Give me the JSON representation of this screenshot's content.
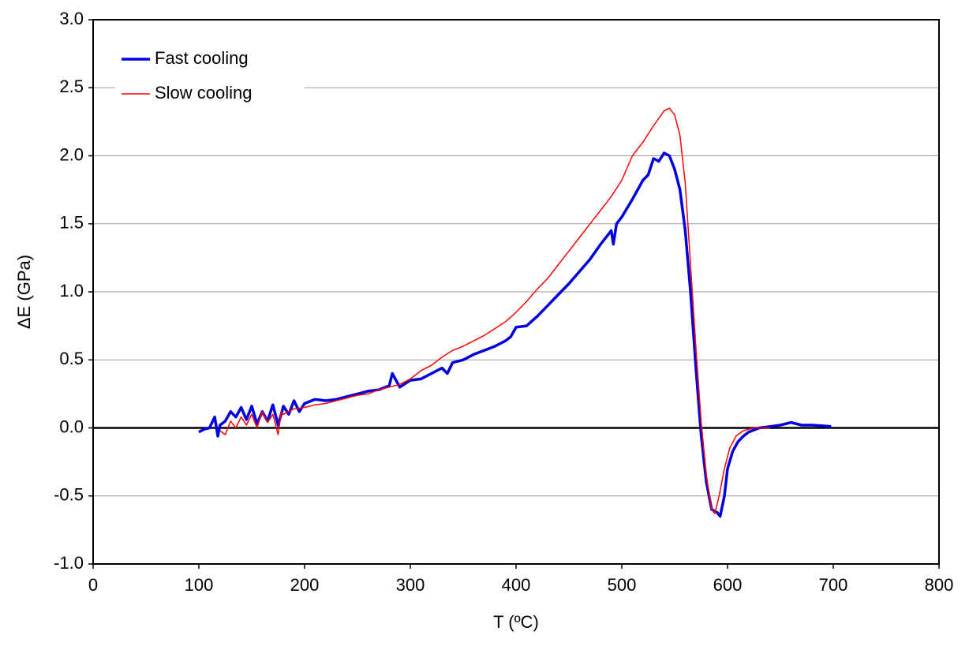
{
  "chart_data": {
    "type": "line",
    "x_label": "T (ºC)",
    "y_label": "ΔE (GPa)",
    "xlim": [
      0,
      800
    ],
    "xticks": [
      0,
      100,
      200,
      300,
      400,
      500,
      600,
      700,
      800
    ],
    "ylim": [
      -1.0,
      3.0
    ],
    "yticks": [
      {
        "value": -1.0,
        "label": "-1.0"
      },
      -0.5,
      {
        "value": 0.0,
        "label": "0.0"
      },
      0.5,
      {
        "value": 1.0,
        "label": "1.0"
      },
      1.5,
      {
        "value": 2.0,
        "label": "2.0"
      },
      2.5,
      {
        "value": 3.0,
        "label": "3.0"
      }
    ],
    "grid": true,
    "zero_line": true,
    "legend": "upper left",
    "series": [
      {
        "name": "Fast cooling",
        "color": "#0000dd",
        "x": [
          100,
          105,
          110,
          115,
          118,
          120,
          125,
          130,
          135,
          140,
          145,
          150,
          155,
          160,
          165,
          170,
          175,
          180,
          185,
          190,
          195,
          200,
          210,
          220,
          230,
          240,
          250,
          260,
          270,
          280,
          283,
          290,
          300,
          310,
          320,
          330,
          335,
          340,
          350,
          360,
          370,
          380,
          390,
          395,
          400,
          410,
          420,
          430,
          440,
          450,
          460,
          470,
          480,
          490,
          492,
          495,
          500,
          510,
          520,
          525,
          530,
          535,
          540,
          545,
          550,
          555,
          560,
          565,
          570,
          575,
          580,
          585,
          590,
          593,
          597,
          600,
          605,
          610,
          615,
          620,
          630,
          640,
          650,
          655,
          660,
          670,
          680,
          690,
          698
        ],
        "values": [
          -0.03,
          -0.01,
          0.0,
          0.08,
          -0.06,
          0.02,
          0.05,
          0.12,
          0.08,
          0.15,
          0.06,
          0.16,
          0.03,
          0.12,
          0.05,
          0.17,
          0.02,
          0.16,
          0.1,
          0.2,
          0.12,
          0.18,
          0.21,
          0.2,
          0.21,
          0.23,
          0.25,
          0.27,
          0.28,
          0.31,
          0.4,
          0.3,
          0.35,
          0.36,
          0.4,
          0.44,
          0.4,
          0.48,
          0.5,
          0.54,
          0.57,
          0.6,
          0.64,
          0.67,
          0.74,
          0.75,
          0.82,
          0.9,
          0.98,
          1.06,
          1.15,
          1.24,
          1.35,
          1.45,
          1.35,
          1.5,
          1.55,
          1.68,
          1.82,
          1.86,
          1.98,
          1.96,
          2.02,
          2.0,
          1.9,
          1.75,
          1.45,
          1.0,
          0.45,
          -0.05,
          -0.4,
          -0.6,
          -0.62,
          -0.65,
          -0.5,
          -0.3,
          -0.17,
          -0.1,
          -0.06,
          -0.03,
          0.0,
          0.01,
          0.02,
          0.03,
          0.04,
          0.02,
          0.02,
          0.015,
          0.01
        ]
      },
      {
        "name": "Slow cooling",
        "color": "#ff0000",
        "x": [
          120,
          125,
          130,
          135,
          140,
          145,
          150,
          155,
          160,
          165,
          170,
          175,
          178,
          180,
          190,
          200,
          210,
          220,
          230,
          240,
          250,
          260,
          270,
          280,
          290,
          300,
          310,
          320,
          330,
          340,
          350,
          360,
          370,
          380,
          390,
          400,
          410,
          420,
          430,
          440,
          450,
          460,
          470,
          480,
          490,
          500,
          510,
          520,
          530,
          540,
          545,
          550,
          555,
          560,
          565,
          570,
          575,
          580,
          585,
          588,
          592,
          597,
          602,
          608,
          615,
          625,
          640
        ],
        "values": [
          -0.02,
          -0.05,
          0.05,
          0.0,
          0.08,
          0.02,
          0.1,
          0.0,
          0.12,
          0.04,
          0.1,
          -0.05,
          0.12,
          0.1,
          0.14,
          0.15,
          0.17,
          0.18,
          0.2,
          0.22,
          0.24,
          0.25,
          0.28,
          0.3,
          0.32,
          0.36,
          0.42,
          0.46,
          0.52,
          0.57,
          0.6,
          0.64,
          0.68,
          0.73,
          0.78,
          0.85,
          0.93,
          1.02,
          1.1,
          1.2,
          1.3,
          1.4,
          1.5,
          1.6,
          1.7,
          1.82,
          2.0,
          2.1,
          2.22,
          2.33,
          2.35,
          2.3,
          2.15,
          1.8,
          1.2,
          0.6,
          0.05,
          -0.35,
          -0.6,
          -0.63,
          -0.5,
          -0.3,
          -0.15,
          -0.06,
          -0.02,
          0.0,
          0.0
        ]
      }
    ]
  }
}
